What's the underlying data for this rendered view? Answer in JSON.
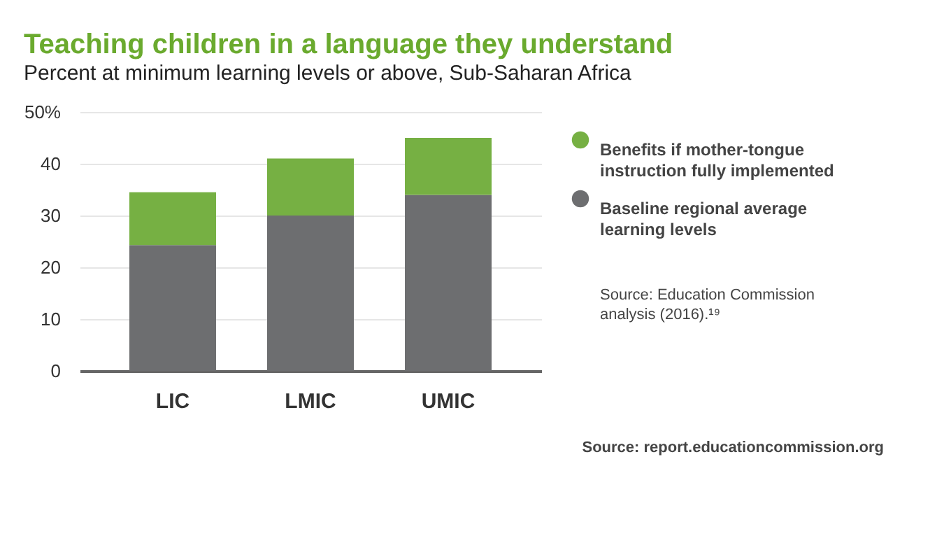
{
  "chart_data": {
    "type": "bar",
    "title": "Teaching children in a language they understand",
    "subtitle": "Percent at minimum learning levels or above, Sub-Saharan Africa",
    "categories": [
      "LIC",
      "LMIC",
      "UMIC"
    ],
    "series": [
      {
        "name": "Baseline regional average learning levels",
        "color": "#6d6e70",
        "values": [
          24.3,
          30,
          34
        ]
      },
      {
        "name": "Benefits if mother-tongue instruction fully implemented",
        "color": "#76b043",
        "values": [
          10.2,
          11,
          11
        ]
      }
    ],
    "stacked": true,
    "ylim": [
      0,
      50
    ],
    "yticks": [
      0,
      10,
      20,
      30,
      40,
      {
        "value": 50,
        "label": "50%"
      }
    ],
    "grid": "y",
    "legend": "right",
    "annotations": [
      "Source: Education Commission analysis (2016).¹⁹",
      "Source: report.educationcommission.org"
    ]
  }
}
